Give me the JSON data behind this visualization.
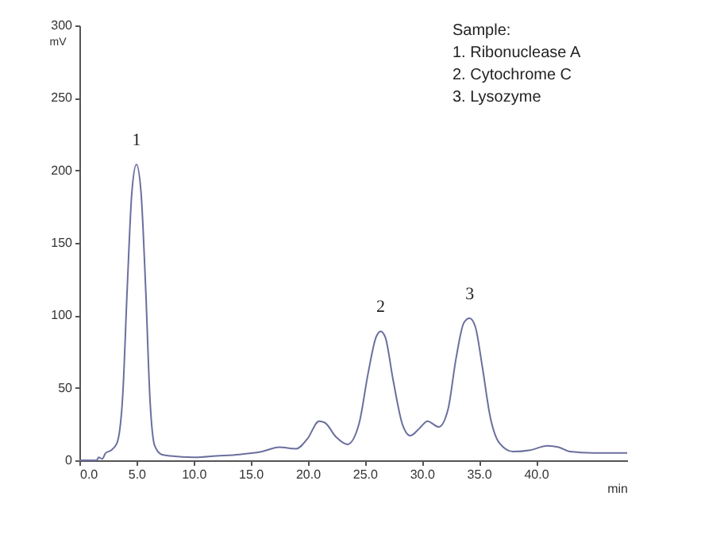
{
  "chart_data": {
    "type": "line",
    "xlabel": "min",
    "ylabel": "mV",
    "x": [
      0,
      1.5,
      1.7,
      2.0,
      2.3,
      2.8,
      3.3,
      3.8,
      4.2,
      4.6,
      5.0,
      5.4,
      5.8,
      6.2,
      6.6,
      7.2,
      8,
      10,
      12,
      14,
      16,
      17.5,
      19,
      20,
      21,
      21.5,
      22.5,
      23.5,
      24.5,
      25.3,
      26,
      26.4,
      26.8,
      27.5,
      28.3,
      29,
      29.8,
      30.5,
      31.5,
      32.3,
      33,
      33.7,
      34.2,
      34.7,
      35.3,
      36,
      36.8,
      38,
      39.5,
      41,
      42,
      43,
      45,
      48
    ],
    "series": [
      {
        "color": "#6b6f9e",
        "values": [
          0,
          0,
          2,
          1,
          5,
          7,
          12,
          45,
          120,
          185,
          204,
          185,
          120,
          40,
          10,
          4,
          3,
          2,
          3,
          4,
          6,
          9,
          8,
          15,
          27,
          26,
          16,
          11,
          25,
          60,
          85,
          89,
          85,
          55,
          25,
          17,
          22,
          27,
          23,
          35,
          70,
          95,
          98,
          92,
          65,
          30,
          12,
          6,
          7,
          10,
          9,
          6,
          5,
          5
        ]
      }
    ],
    "xlim": [
      0,
      48
    ],
    "xticks": [
      {
        "value": 0,
        "label": "0.0"
      },
      {
        "value": 5,
        "label": "5.0"
      },
      {
        "value": 10,
        "label": "10.0"
      },
      {
        "value": 15,
        "label": "15.0"
      },
      {
        "value": 20,
        "label": "20.0"
      },
      {
        "value": 25,
        "label": "25.0"
      },
      {
        "value": 30,
        "label": "30.0"
      },
      {
        "value": 35,
        "label": "35.0"
      },
      {
        "value": 40,
        "label": "40.0"
      }
    ],
    "ylim": [
      0,
      300
    ],
    "yticks": [
      0,
      50,
      100,
      150,
      200,
      250,
      300
    ],
    "annotations": [
      {
        "text": "1",
        "x": 5.0,
        "y": 204
      },
      {
        "text": "2",
        "x": 26.4,
        "y": 89
      },
      {
        "text": "3",
        "x": 34.2,
        "y": 98
      },
      "Sample:",
      "1. Ribonuclease A",
      "2. Cytochrome C",
      "3. Lysozyme"
    ]
  }
}
